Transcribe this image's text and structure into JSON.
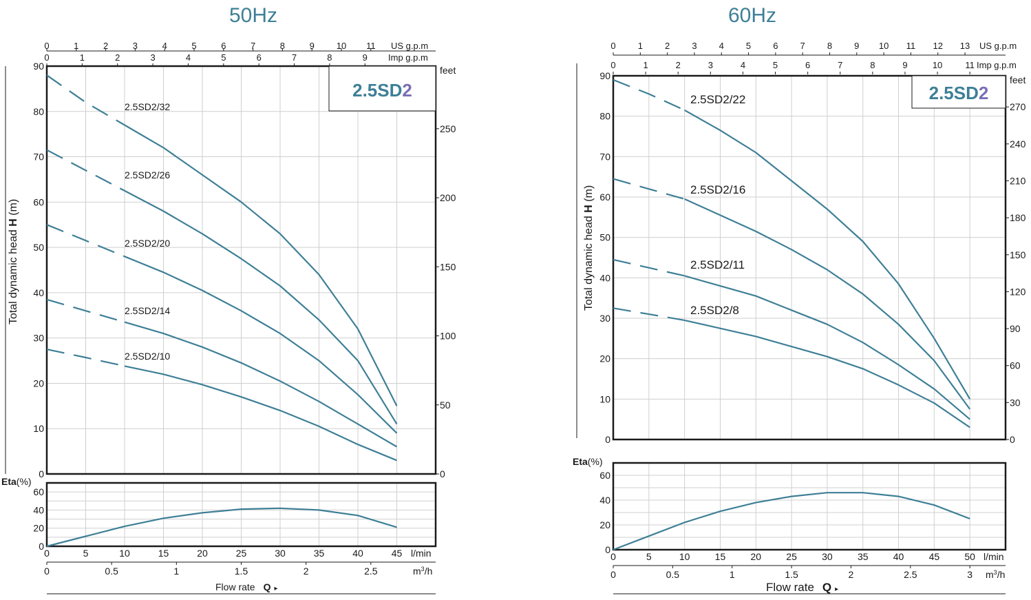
{
  "colors": {
    "curve": "#3e7f96",
    "title": "#3e7f96",
    "accent_digit": "#7a6fb6",
    "grid": "#cfcfcf",
    "frame": "#1a1a1a",
    "text": "#1a1a1a"
  },
  "chart_data": [
    {
      "type": "line",
      "title": "50Hz",
      "model": {
        "prefix": "2.5SD",
        "suffix": "2"
      },
      "top_axes": {
        "us_gpm": {
          "unit": "US g.p.m",
          "ticks": [
            "0",
            "1",
            "2",
            "3",
            "4",
            "5",
            "6",
            "7",
            "8",
            "9",
            "10",
            "11"
          ]
        },
        "imp_gpm": {
          "unit": "Imp g.p.m",
          "ticks": [
            "0",
            "1",
            "2",
            "3",
            "4",
            "5",
            "6",
            "7",
            "8",
            "9"
          ]
        }
      },
      "head": {
        "ylabel_prefix": "Total dynamic head ",
        "ylabel_symbol": "H",
        "ylabel_unit": " (m)",
        "ylim": [
          0,
          90
        ],
        "yticks": [
          "0",
          "10",
          "20",
          "30",
          "40",
          "50",
          "60",
          "70",
          "80",
          "90"
        ],
        "right_unit": "feet",
        "right_ticks": [
          "0",
          "50",
          "100",
          "150",
          "200",
          "250"
        ],
        "xlim": [
          0,
          50
        ],
        "solid_from_x": 10,
        "series": [
          {
            "name": "2.5SD2/32",
            "x": [
              0,
              5,
              10,
              15,
              20,
              25,
              30,
              35,
              40,
              45
            ],
            "y": [
              88,
              82,
              77,
              72,
              66,
              60,
              53,
              44,
              32,
              15
            ]
          },
          {
            "name": "2.5SD2/26",
            "x": [
              0,
              5,
              10,
              15,
              20,
              25,
              30,
              35,
              40,
              45
            ],
            "y": [
              71.5,
              67,
              62.5,
              58,
              53,
              47.5,
              41.5,
              34,
              25,
              11
            ]
          },
          {
            "name": "2.5SD2/20",
            "x": [
              0,
              5,
              10,
              15,
              20,
              25,
              30,
              35,
              40,
              45
            ],
            "y": [
              55,
              51.5,
              48,
              44.5,
              40.5,
              36,
              31,
              25,
              17.5,
              9
            ]
          },
          {
            "name": "2.5SD2/14",
            "x": [
              0,
              5,
              10,
              15,
              20,
              25,
              30,
              35,
              40,
              45
            ],
            "y": [
              38.5,
              36,
              33.5,
              31,
              28,
              24.5,
              20.5,
              16,
              11,
              6
            ]
          },
          {
            "name": "2.5SD2/10",
            "x": [
              0,
              5,
              10,
              15,
              20,
              25,
              30,
              35,
              40,
              45
            ],
            "y": [
              27.5,
              25.7,
              23.8,
              22,
              19.7,
              17,
              14,
              10.5,
              6.5,
              3
            ]
          }
        ]
      },
      "eta": {
        "label_bold": "Eta",
        "label_unit": "(%)",
        "ylim": [
          0,
          70
        ],
        "yticks": [
          "0",
          "20",
          "40",
          "60"
        ],
        "x": [
          0,
          5,
          10,
          15,
          20,
          25,
          30,
          35,
          40,
          45
        ],
        "y": [
          0,
          11,
          22,
          31,
          37,
          41,
          42,
          40,
          34,
          21
        ]
      },
      "bottom_axes": {
        "lmin": {
          "unit": "l/min",
          "ticks": [
            "0",
            "5",
            "10",
            "15",
            "20",
            "25",
            "30",
            "35",
            "40",
            "45"
          ]
        },
        "m3h": {
          "unit_base": "m",
          "unit_sup": "3",
          "unit_tail": "/h",
          "ticks": [
            "0",
            "0.5",
            "1",
            "1.5",
            "2",
            "2.5"
          ]
        },
        "xlabel": "Flow  rate",
        "xlabel_symbol": "Q"
      }
    },
    {
      "type": "line",
      "title": "60Hz",
      "model": {
        "prefix": "2.5SD",
        "suffix": "2"
      },
      "top_axes": {
        "us_gpm": {
          "unit": "US g.p.m",
          "ticks": [
            "0",
            "1",
            "2",
            "3",
            "4",
            "5",
            "6",
            "7",
            "8",
            "9",
            "10",
            "11",
            "12",
            "13"
          ]
        },
        "imp_gpm": {
          "unit": "Imp g.p.m",
          "ticks": [
            "0",
            "1",
            "2",
            "3",
            "4",
            "5",
            "6",
            "7",
            "8",
            "9",
            "10",
            "11"
          ]
        }
      },
      "head": {
        "ylabel_prefix": "Total dynamic head ",
        "ylabel_symbol": "H",
        "ylabel_unit": " (m)",
        "ylim": [
          0,
          90
        ],
        "yticks": [
          "0",
          "10",
          "20",
          "30",
          "40",
          "50",
          "60",
          "70",
          "80",
          "90"
        ],
        "right_unit": "feet",
        "right_ticks": [
          "0",
          "30",
          "60",
          "90",
          "120",
          "150",
          "180",
          "210",
          "240",
          "270"
        ],
        "xlim": [
          0,
          55
        ],
        "solid_from_x": 10,
        "series": [
          {
            "name": "2.5SD2/22",
            "x": [
              0,
              5,
              10,
              15,
              20,
              25,
              30,
              35,
              40,
              45,
              50
            ],
            "y": [
              89,
              85.5,
              81.5,
              76.5,
              71,
              64,
              57,
              49,
              38.5,
              25,
              10
            ]
          },
          {
            "name": "2.5SD2/16",
            "x": [
              0,
              5,
              10,
              15,
              20,
              25,
              30,
              35,
              40,
              45,
              50
            ],
            "y": [
              64.5,
              62,
              59.5,
              55.5,
              51.5,
              47,
              42,
              36,
              28.5,
              19.5,
              7.5
            ]
          },
          {
            "name": "2.5SD2/11",
            "x": [
              0,
              5,
              10,
              15,
              20,
              25,
              30,
              35,
              40,
              45,
              50
            ],
            "y": [
              44.5,
              42.5,
              40.5,
              38,
              35.5,
              32,
              28.5,
              24,
              18.5,
              12.5,
              5
            ]
          },
          {
            "name": "2.5SD2/8",
            "x": [
              0,
              5,
              10,
              15,
              20,
              25,
              30,
              35,
              40,
              45,
              50
            ],
            "y": [
              32.5,
              31,
              29.5,
              27.5,
              25.5,
              23,
              20.5,
              17.5,
              13.5,
              9,
              3
            ]
          }
        ]
      },
      "eta": {
        "label_bold": "Eta",
        "label_unit": "(%)",
        "ylim": [
          0,
          70
        ],
        "yticks": [
          "0",
          "20",
          "40",
          "60"
        ],
        "x": [
          0,
          5,
          10,
          15,
          20,
          25,
          30,
          35,
          40,
          45,
          50
        ],
        "y": [
          0,
          11,
          22,
          31,
          38,
          43,
          46,
          46,
          43,
          36,
          25
        ]
      },
      "bottom_axes": {
        "lmin": {
          "unit": "l/min",
          "ticks": [
            "0",
            "5",
            "10",
            "15",
            "20",
            "25",
            "30",
            "35",
            "40",
            "45",
            "50"
          ]
        },
        "m3h": {
          "unit_base": "m",
          "unit_sup": "3",
          "unit_tail": "/h",
          "ticks": [
            "0",
            "0.5",
            "1",
            "1.5",
            "2",
            "2.5",
            "3"
          ]
        },
        "xlabel": "Flow  rate",
        "xlabel_symbol": "Q"
      }
    }
  ]
}
